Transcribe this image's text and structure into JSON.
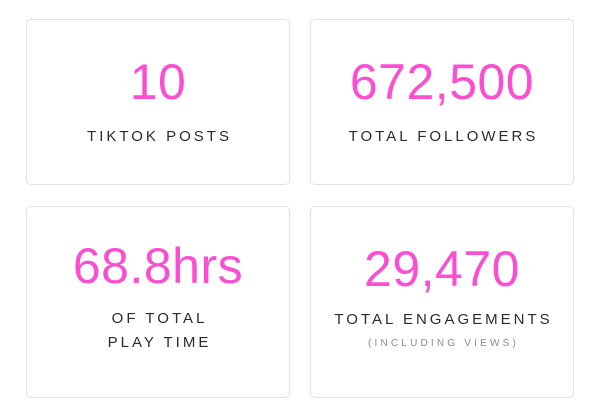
{
  "accent_color": "#f94fd0",
  "stats": [
    {
      "value": "10",
      "label_lines": [
        "TIKTOK POSTS"
      ],
      "sub": null
    },
    {
      "value": "672,500",
      "label_lines": [
        "TOTAL FOLLOWERS"
      ],
      "sub": null
    },
    {
      "value": "68.8hrs",
      "label_lines": [
        "OF TOTAL",
        "PLAY TIME"
      ],
      "sub": null
    },
    {
      "value": "29,470",
      "label_lines": [
        "TOTAL ENGAGEMENTS"
      ],
      "sub": "(INCLUDING VIEWS)"
    }
  ]
}
